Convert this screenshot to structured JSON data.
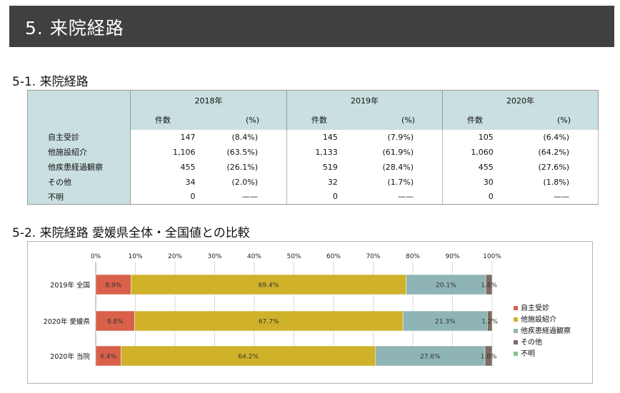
{
  "banner": {
    "title": "5.  来院経路"
  },
  "section1": {
    "title": "5-1.  来院経路"
  },
  "table": {
    "years": [
      "2018年",
      "2019年",
      "2020年"
    ],
    "count_header": "件数",
    "pct_header": "(%)",
    "rows": [
      {
        "label": "自主受診",
        "cells": [
          [
            "147",
            "(8.4%)"
          ],
          [
            "145",
            "(7.9%)"
          ],
          [
            "105",
            "(6.4%)"
          ]
        ]
      },
      {
        "label": "他施設紹介",
        "cells": [
          [
            "1,106",
            "(63.5%)"
          ],
          [
            "1,133",
            "(61.9%)"
          ],
          [
            "1,060",
            "(64.2%)"
          ]
        ]
      },
      {
        "label": "他疾患経過観察",
        "cells": [
          [
            "455",
            "(26.1%)"
          ],
          [
            "519",
            "(28.4%)"
          ],
          [
            "455",
            "(27.6%)"
          ]
        ]
      },
      {
        "label": "その他",
        "cells": [
          [
            "34",
            "(2.0%)"
          ],
          [
            "32",
            "(1.7%)"
          ],
          [
            "30",
            "(1.8%)"
          ]
        ]
      },
      {
        "label": "不明",
        "cells": [
          [
            "0",
            "——"
          ],
          [
            "0",
            "——"
          ],
          [
            "0",
            "——"
          ]
        ]
      }
    ]
  },
  "section2": {
    "title": "5-2.  来院経路  愛媛県全体・全国値との比較"
  },
  "chart_data": {
    "type": "bar",
    "orientation": "horizontal",
    "stacked": true,
    "categories": [
      "2019年  全国",
      "2020年  愛媛県",
      "2020年  当院"
    ],
    "xlim": [
      0,
      100
    ],
    "x_ticks": [
      "0%",
      "10%",
      "20%",
      "30%",
      "40%",
      "50%",
      "60%",
      "70%",
      "80%",
      "90%",
      "100%"
    ],
    "legend_position": "right",
    "series": [
      {
        "name": "自主受診",
        "color": "#d9614a",
        "values": [
          8.9,
          9.8,
          6.4
        ],
        "labels": [
          "8.9%",
          "9.8%",
          "6.4%"
        ]
      },
      {
        "name": "他施設紹介",
        "color": "#cfb22a",
        "values": [
          69.4,
          67.7,
          64.2
        ],
        "labels": [
          "69.4%",
          "67.7%",
          "64.2%"
        ]
      },
      {
        "name": "他疾患経過観察",
        "color": "#8fb4b5",
        "values": [
          20.1,
          21.3,
          27.6
        ],
        "labels": [
          "20.1%",
          "21.3%",
          "27.6%"
        ]
      },
      {
        "name": "その他",
        "color": "#7d6c62",
        "values": [
          1.6,
          1.2,
          1.8
        ],
        "labels": [
          "1.6%",
          "1.2%",
          "1.8%"
        ]
      },
      {
        "name": "不明",
        "color": "#86c49a",
        "values": [
          0,
          0,
          0
        ],
        "labels": [
          "",
          "",
          ""
        ]
      }
    ]
  }
}
